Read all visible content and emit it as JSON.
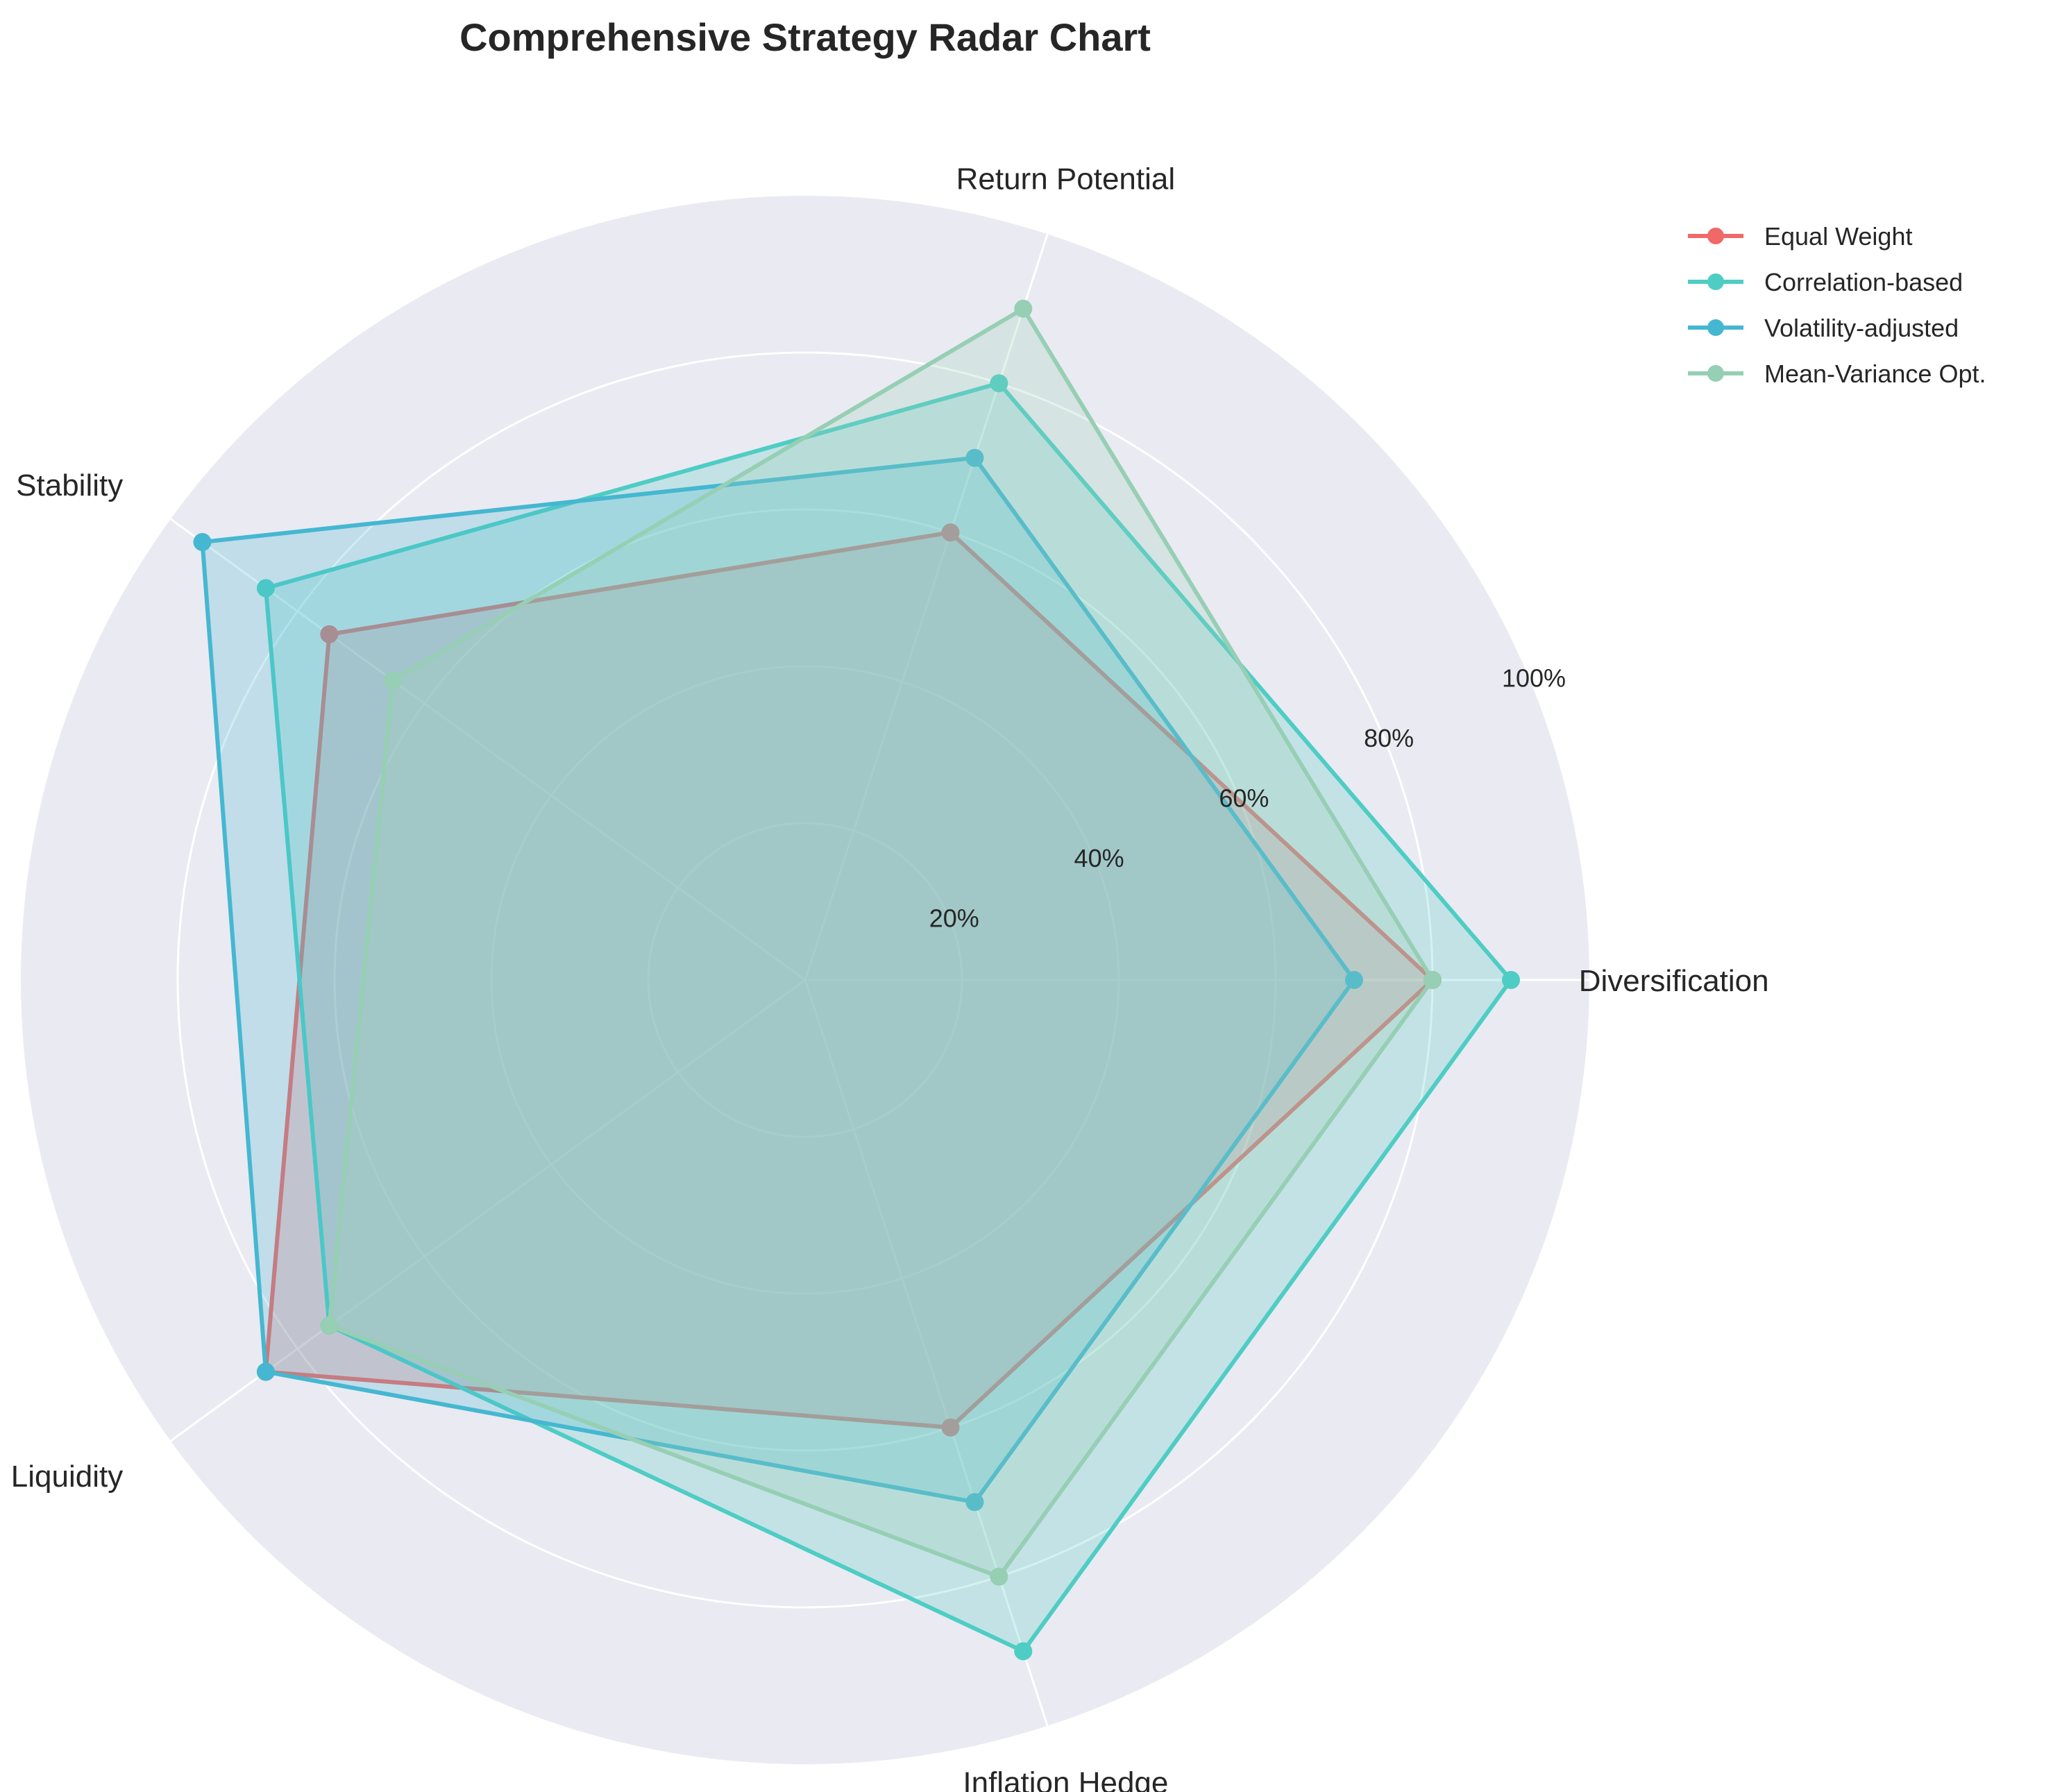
{
  "chart_data": {
    "type": "radar",
    "title": "Comprehensive Strategy Radar Chart",
    "axes": [
      "Diversification",
      "Return Potential",
      "Stability",
      "Liquidity",
      "Inflation Hedge"
    ],
    "r_ticks": [
      20,
      40,
      60,
      80,
      100
    ],
    "r_tick_labels": [
      "20%",
      "40%",
      "60%",
      "80%",
      "100%"
    ],
    "r_range": [
      0,
      100
    ],
    "grid": true,
    "legend_position": "top-right",
    "series": [
      {
        "name": "Equal Weight",
        "color": "#f06868",
        "values": [
          80,
          60,
          75,
          85,
          60
        ]
      },
      {
        "name": "Correlation-based",
        "color": "#4ecdc4",
        "values": [
          90,
          80,
          85,
          75,
          90
        ]
      },
      {
        "name": "Volatility-adjusted",
        "color": "#45b7d1",
        "values": [
          70,
          70,
          95,
          85,
          70
        ]
      },
      {
        "name": "Mean-Variance Opt.",
        "color": "#96cfb4",
        "values": [
          80,
          90,
          65,
          75,
          80
        ]
      }
    ]
  }
}
